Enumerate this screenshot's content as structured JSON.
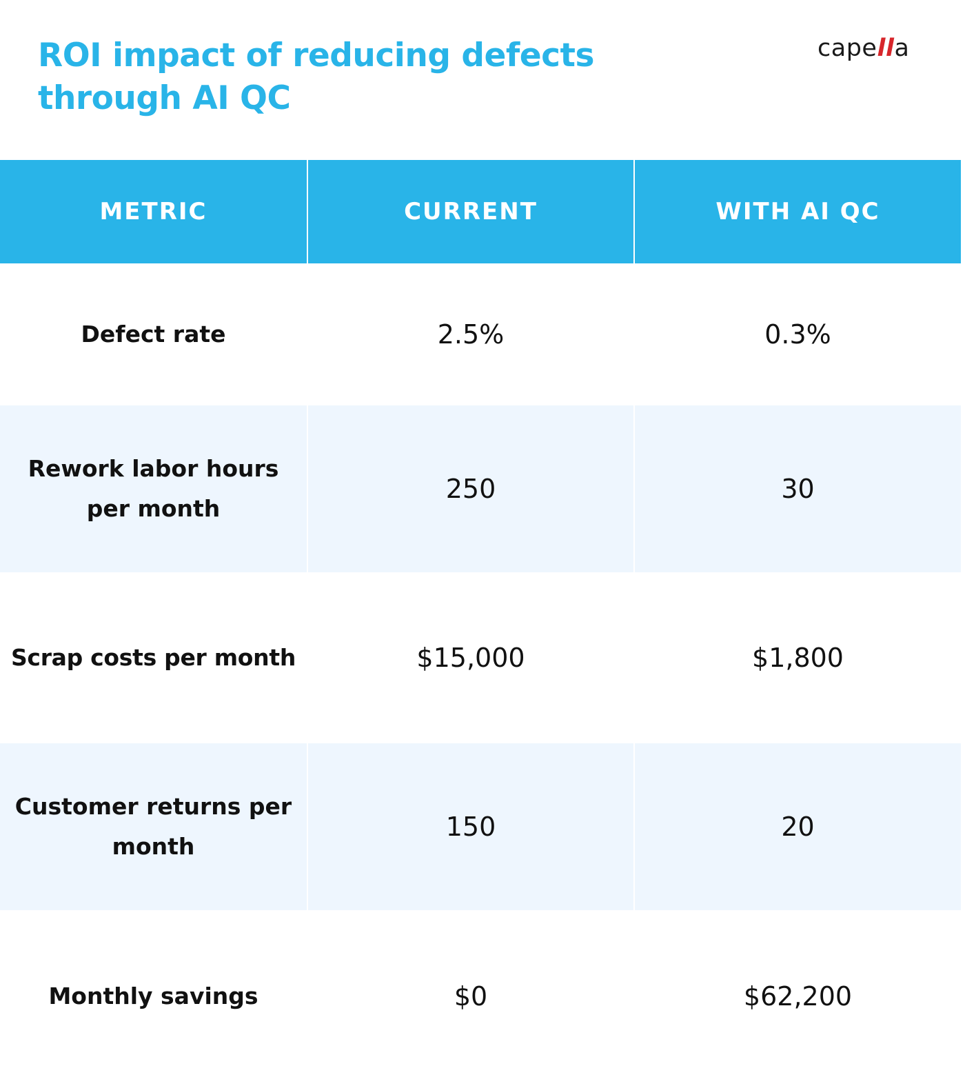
{
  "title": "ROI impact of reducing defects through AI QC",
  "logo": {
    "prefix": "cape",
    "accent": "ll",
    "suffix": "a"
  },
  "colors": {
    "header_bg": "#29b4e8",
    "title": "#29b4e8",
    "row_shade": "#eef6fe",
    "logo_accent": "#d7262b"
  },
  "chart_data": {
    "type": "table",
    "columns": [
      "METRIC",
      "CURRENT",
      "WITH AI QC"
    ],
    "rows": [
      {
        "metric": "Defect rate",
        "current": "2.5%",
        "with_ai_qc": "0.3%"
      },
      {
        "metric": "Rework labor hours per month",
        "current": "250",
        "with_ai_qc": "30"
      },
      {
        "metric": "Scrap costs per month",
        "current": "$15,000",
        "with_ai_qc": "$1,800"
      },
      {
        "metric": "Customer returns per month",
        "current": "150",
        "with_ai_qc": "20"
      },
      {
        "metric": "Monthly savings",
        "current": "$0",
        "with_ai_qc": "$62,200"
      }
    ]
  }
}
